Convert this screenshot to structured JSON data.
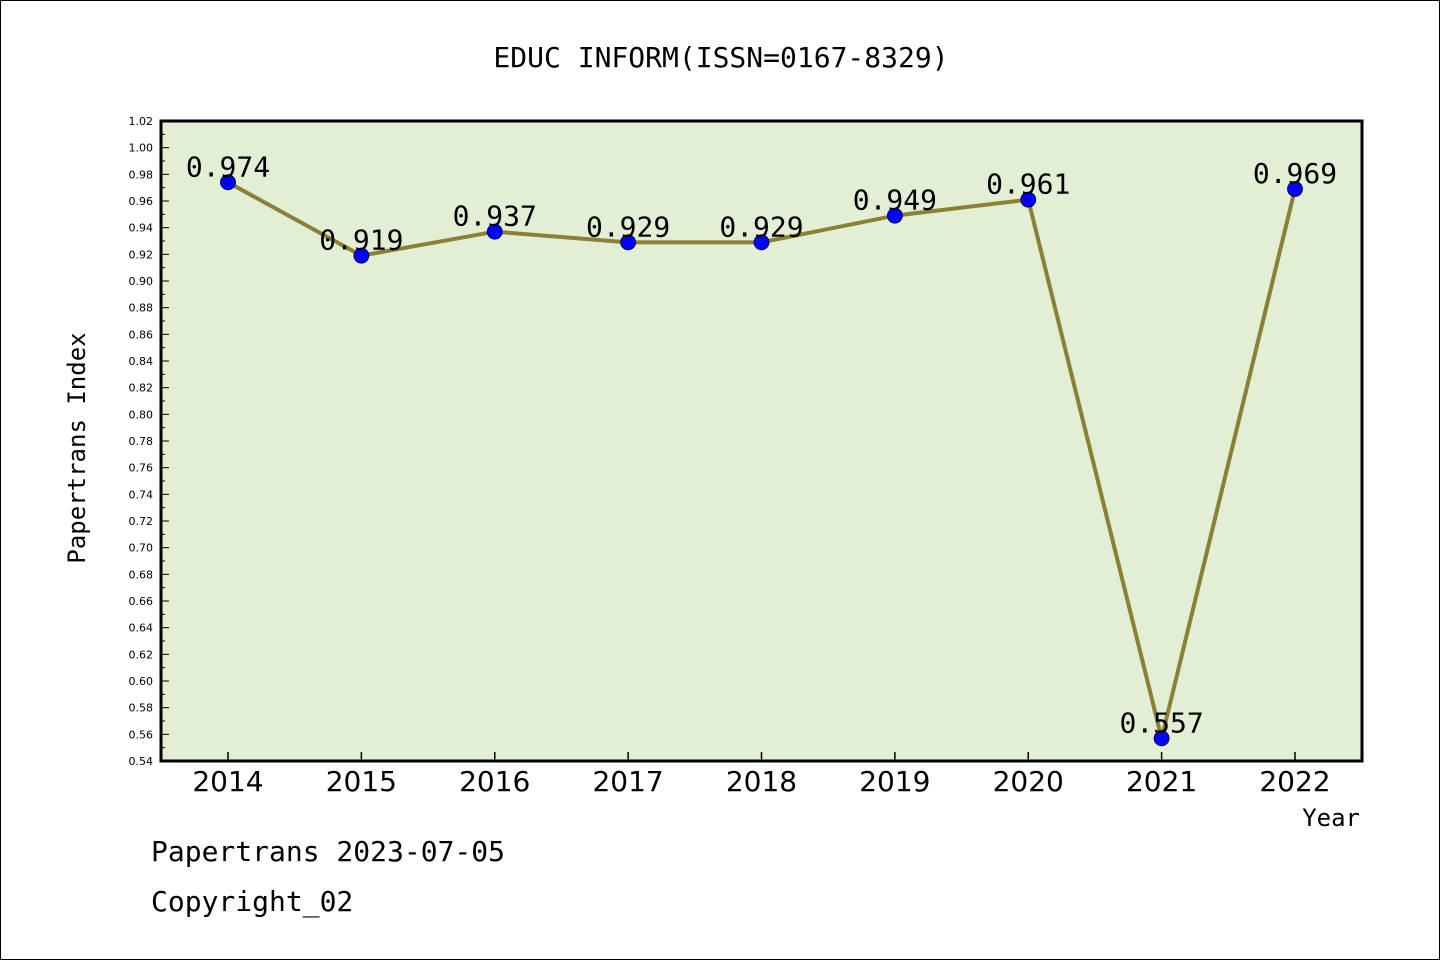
{
  "chart_data": {
    "type": "line",
    "title": "EDUC INFORM(ISSN=0167-8329)",
    "xlabel": "Year",
    "ylabel": "Papertrans Index",
    "categories": [
      "2014",
      "2015",
      "2016",
      "2017",
      "2018",
      "2019",
      "2020",
      "2021",
      "2022"
    ],
    "series": [
      {
        "values": [
          0.974,
          0.919,
          0.937,
          0.929,
          0.929,
          0.949,
          0.961,
          0.557,
          0.969
        ],
        "labels": [
          "0.974",
          "0.919",
          "0.937",
          "0.929",
          "0.929",
          "0.949",
          "0.961",
          "0.557",
          "0.969"
        ]
      }
    ],
    "ylim": [
      0.54,
      1.02
    ],
    "yticks": [
      "0.54",
      "0.56",
      "0.58",
      "0.60",
      "0.62",
      "0.64",
      "0.66",
      "0.68",
      "0.70",
      "0.72",
      "0.74",
      "0.76",
      "0.78",
      "0.80",
      "0.82",
      "0.84",
      "0.86",
      "0.88",
      "0.90",
      "0.92",
      "0.94",
      "0.96",
      "0.98",
      "1.00",
      "1.02"
    ],
    "grid": false,
    "colors": {
      "plot_background": "#e2efd5",
      "line": "#8b8035",
      "marker": "#0000ff"
    }
  },
  "footer": {
    "date_line": "Papertrans 2023-07-05",
    "copyright": "Copyright_02"
  }
}
